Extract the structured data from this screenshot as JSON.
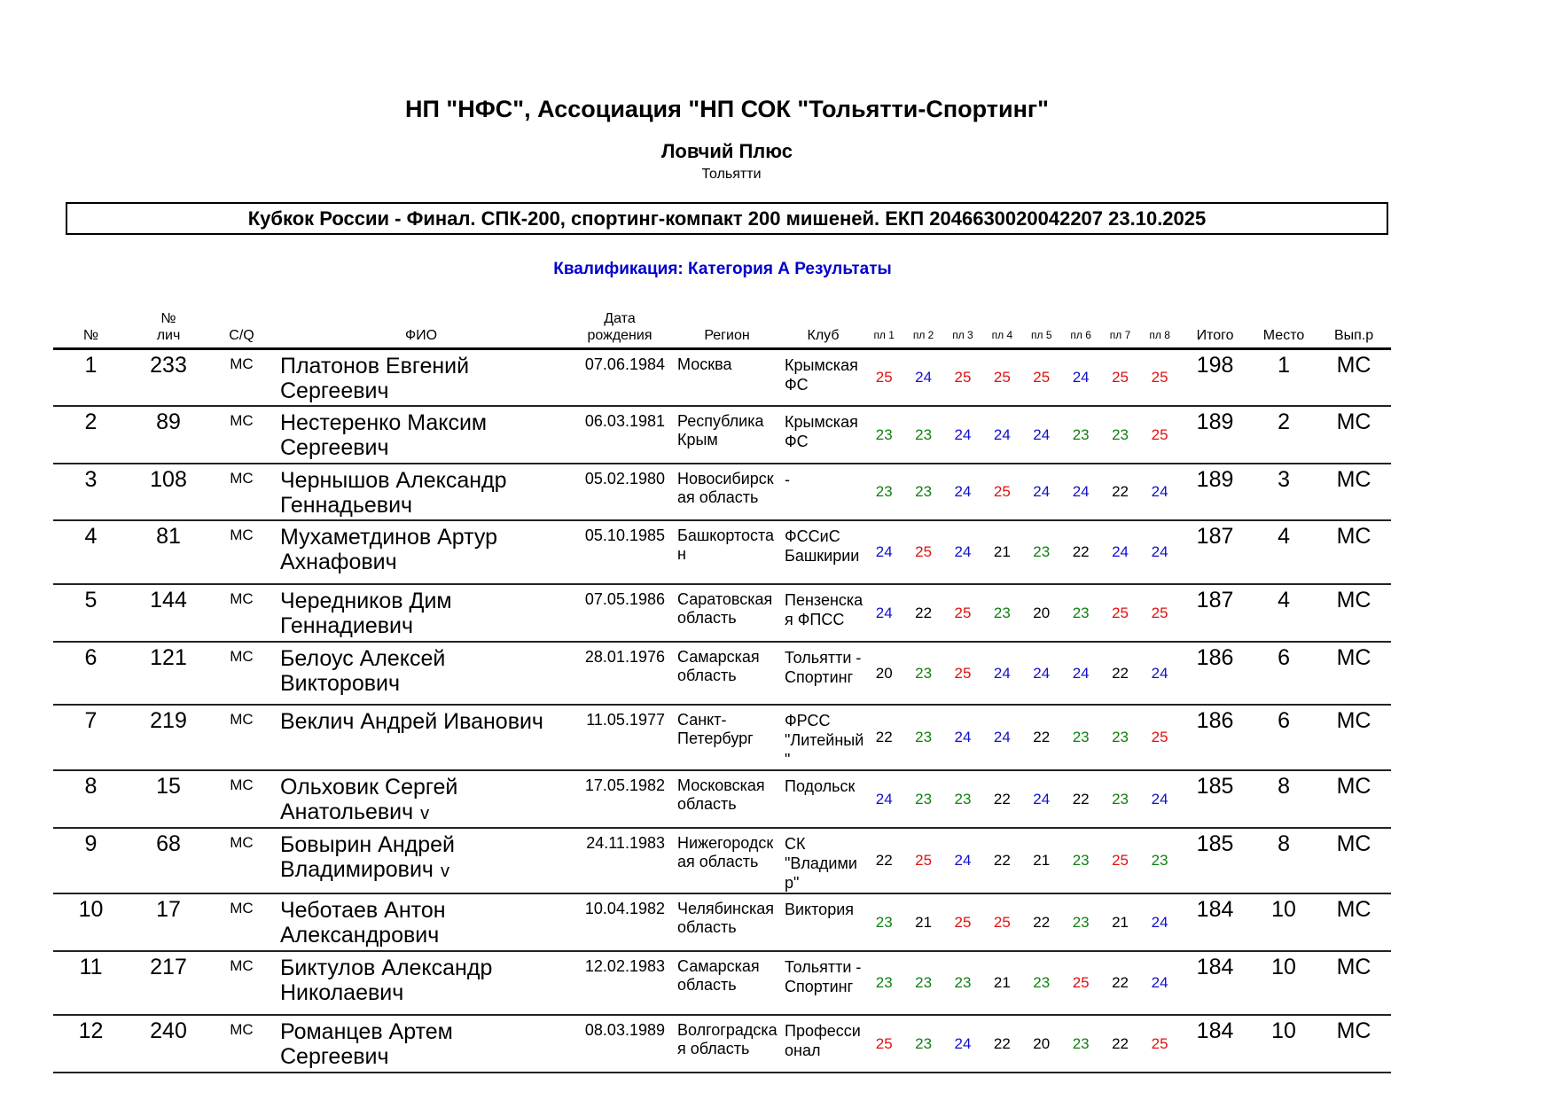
{
  "header": {
    "title": "НП \"НФС\", Ассоциация \"НП СОК \"Тольятти-Спортинг\"",
    "club": "Ловчий Плюс",
    "city": "Тольятти",
    "event": "Кубкок России - Финал. СПК-200, спортинг-компакт 200 мишеней. ЕКП 2046630020042207 23.10.2025",
    "section": "Квалификация: Категория А Результаты"
  },
  "colors": {
    "section": "#0000cc",
    "score_25": "#e01010",
    "score_24": "#1010cc",
    "score_23": "#108010",
    "score_other": "#000000"
  },
  "columns": [
    "№",
    "№\nлич",
    "C/Q",
    "ФИО",
    "Дата\nрождения",
    "Регион",
    "Клуб",
    "пл 1",
    "пл 2",
    "пл 3",
    "пл 4",
    "пл 5",
    "пл 6",
    "пл 7",
    "пл 8",
    "Итого",
    "Место",
    "Вып.р"
  ],
  "rows": [
    {
      "no": "1",
      "lic": "233",
      "cq": "МС",
      "name": "Платонов Евгений Сергеевич",
      "mark": "",
      "dob": "07.06.1984",
      "region": "Москва",
      "club": "Крымская ФС",
      "scores": [
        25,
        24,
        25,
        25,
        25,
        24,
        25,
        25
      ],
      "total": "198",
      "place": "1",
      "rank": "МС"
    },
    {
      "no": "2",
      "lic": "89",
      "cq": "МС",
      "name": "Нестеренко Максим Сергеевич",
      "mark": "",
      "dob": "06.03.1981",
      "region": "Республика Крым",
      "club": "Крымская ФС",
      "scores": [
        23,
        23,
        24,
        24,
        24,
        23,
        23,
        25
      ],
      "total": "189",
      "place": "2",
      "rank": "МС"
    },
    {
      "no": "3",
      "lic": "108",
      "cq": "МС",
      "name": "Чернышов Александр Геннадьевич",
      "mark": "",
      "dob": "05.02.1980",
      "region": "Новосибирская область",
      "club": "-",
      "scores": [
        23,
        23,
        24,
        25,
        24,
        24,
        22,
        24
      ],
      "total": "189",
      "place": "3",
      "rank": "МС"
    },
    {
      "no": "4",
      "lic": "81",
      "cq": "МС",
      "name": "Мухаметдинов Артур Ахнафович",
      "mark": "",
      "dob": "05.10.1985",
      "region": "Башкортостан",
      "club": "ФССиС Башкирии",
      "scores": [
        24,
        25,
        24,
        21,
        23,
        22,
        24,
        24
      ],
      "total": "187",
      "place": "4",
      "rank": "МС"
    },
    {
      "no": "5",
      "lic": "144",
      "cq": "МС",
      "name": "Чередников Дим Геннадиевич",
      "mark": "",
      "dob": "07.05.1986",
      "region": "Саратовская область",
      "club": "Пензенская ФПСС",
      "scores": [
        24,
        22,
        25,
        23,
        20,
        23,
        25,
        25
      ],
      "total": "187",
      "place": "4",
      "rank": "МС"
    },
    {
      "no": "6",
      "lic": "121",
      "cq": "МС",
      "name": "Белоус Алексей Викторович",
      "mark": "",
      "dob": "28.01.1976",
      "region": "Самарская область",
      "club": "Тольятти - Спортинг",
      "scores": [
        20,
        23,
        25,
        24,
        24,
        24,
        22,
        24
      ],
      "total": "186",
      "place": "6",
      "rank": "МС"
    },
    {
      "no": "7",
      "lic": "219",
      "cq": "МС",
      "name": "Веклич Андрей Иванович",
      "mark": "",
      "dob": "11.05.1977",
      "region": "Санкт-Петербург",
      "club": "ФРСС \"Литейный\"",
      "scores": [
        22,
        23,
        24,
        24,
        22,
        23,
        23,
        25
      ],
      "total": "186",
      "place": "6",
      "rank": "МС"
    },
    {
      "no": "8",
      "lic": "15",
      "cq": "МС",
      "name": "Ольховик Сергей Анатольевич",
      "mark": "v",
      "dob": "17.05.1982",
      "region": "Московская область",
      "club": "Подольск",
      "scores": [
        24,
        23,
        23,
        22,
        24,
        22,
        23,
        24
      ],
      "total": "185",
      "place": "8",
      "rank": "МС"
    },
    {
      "no": "9",
      "lic": "68",
      "cq": "МС",
      "name": "Бовырин Андрей Владимирович",
      "mark": "v",
      "dob": "24.11.1983",
      "region": "Нижегородская область",
      "club": "СК \"Владимир\"",
      "scores": [
        22,
        25,
        24,
        22,
        21,
        23,
        25,
        23
      ],
      "total": "185",
      "place": "8",
      "rank": "МС"
    },
    {
      "no": "10",
      "lic": "17",
      "cq": "МС",
      "name": "Чеботаев Антон Александрович",
      "mark": "",
      "dob": "10.04.1982",
      "region": "Челябинская область",
      "club": "Виктория",
      "scores": [
        23,
        21,
        25,
        25,
        22,
        23,
        21,
        24
      ],
      "total": "184",
      "place": "10",
      "rank": "МС"
    },
    {
      "no": "11",
      "lic": "217",
      "cq": "МС",
      "name": "Биктулов Александр Николаевич",
      "mark": "",
      "dob": "12.02.1983",
      "region": "Самарская область",
      "club": "Тольятти - Спортинг",
      "scores": [
        23,
        23,
        23,
        21,
        23,
        25,
        22,
        24
      ],
      "total": "184",
      "place": "10",
      "rank": "МС"
    },
    {
      "no": "12",
      "lic": "240",
      "cq": "МС",
      "name": "Романцев Артем Сергеевич",
      "mark": "",
      "dob": "08.03.1989",
      "region": "Волгоградская область",
      "club": "Профессионал",
      "scores": [
        25,
        23,
        24,
        22,
        20,
        23,
        22,
        25
      ],
      "total": "184",
      "place": "10",
      "rank": "МС"
    }
  ]
}
